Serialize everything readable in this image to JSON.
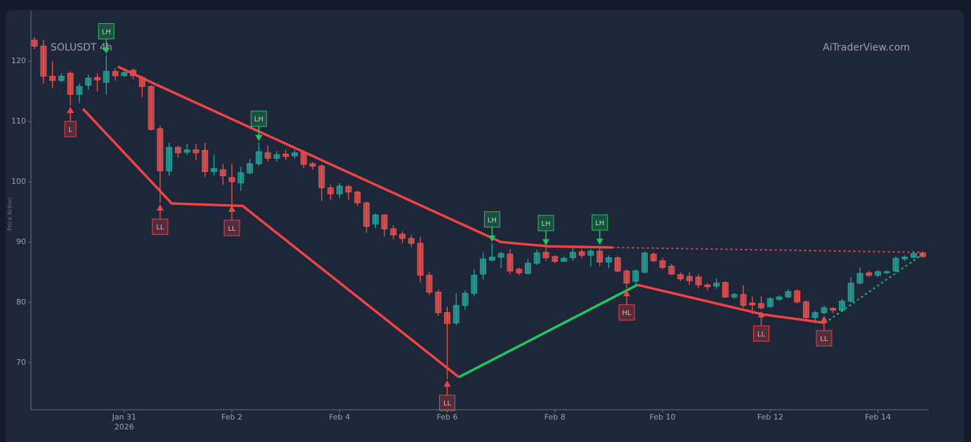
{
  "chart_data": {
    "type": "candlestick",
    "title": "SOLUSDT 4h",
    "watermark": "AiTraderView.com",
    "y_label": "Price Action",
    "up_color": "#26a69a",
    "down_color": "#ef5350",
    "xlim": [
      -0.4,
      99.6
    ],
    "ylim": [
      62.2,
      128.4
    ],
    "yticks": [
      70,
      80,
      90,
      100,
      110,
      120
    ],
    "xticks": [
      {
        "value": 10,
        "label": "Jan 31",
        "sublabel": "2026"
      },
      {
        "value": 22,
        "label": "Feb 2"
      },
      {
        "value": 34,
        "label": "Feb 4"
      },
      {
        "value": 46,
        "label": "Feb 6"
      },
      {
        "value": 58,
        "label": "Feb 8"
      },
      {
        "value": 70,
        "label": "Feb 10"
      },
      {
        "value": 82,
        "label": "Feb 12"
      },
      {
        "value": 94,
        "label": "Feb 14"
      }
    ],
    "open": [
      123.5,
      122.5,
      117.5,
      116.8,
      118,
      114.5,
      116,
      117.3,
      116.5,
      118.3,
      117.6,
      118.5,
      117.3,
      115.8,
      108.8,
      101.8,
      105.7,
      104.9,
      105.3,
      105.2,
      101.7,
      102,
      100.7,
      99.8,
      101.5,
      103,
      104.8,
      103.9,
      104.6,
      104.3,
      104.8,
      103,
      102.6,
      99,
      98,
      99.2,
      98.3,
      96.5,
      93,
      94.5,
      92.2,
      91.3,
      90.6,
      89.8,
      84.5,
      81.7,
      78.3,
      76.6,
      79.5,
      81.5,
      84.7,
      87,
      87.5,
      88,
      85.5,
      84.8,
      86.5,
      88.3,
      87.6,
      86.8,
      87.4,
      88.4,
      87.8,
      88.5,
      86.7,
      87.4,
      85.2,
      83.5,
      85,
      88,
      86.9,
      86,
      84.6,
      84.3,
      84.2,
      82.9,
      82.7,
      83.3,
      80.9,
      81.3,
      79.9,
      79.8,
      79.3,
      80.5,
      80.9,
      81.9,
      80.1,
      77.5,
      78.3,
      79,
      78.7,
      80.2,
      83.2,
      84.9,
      84.5,
      84.9,
      85.2,
      87.2,
      87.5,
      88.2
    ],
    "high": [
      124,
      123.5,
      120,
      118,
      118.3,
      116.3,
      117.8,
      118,
      121,
      118.8,
      118.6,
      118.8,
      117.6,
      116,
      109.3,
      106.5,
      106,
      106.3,
      106.3,
      106.5,
      104.5,
      103,
      103,
      102.5,
      103.8,
      106.5,
      106,
      105.1,
      105.3,
      105.3,
      105.2,
      103.3,
      102.9,
      99.5,
      99.8,
      99.5,
      98.5,
      96.7,
      94.8,
      94.6,
      92.8,
      91.8,
      91.2,
      90.9,
      85,
      82.1,
      79.3,
      81.5,
      82,
      85.5,
      88.3,
      89.8,
      88.4,
      88.8,
      85.8,
      87.2,
      88.7,
      89.2,
      87.8,
      87.6,
      89,
      88.8,
      88.8,
      89.3,
      87.8,
      87.7,
      85.5,
      85.5,
      88.5,
      88.3,
      87.4,
      86.4,
      85,
      85,
      84.7,
      83.2,
      84,
      83.5,
      81.6,
      82.9,
      81,
      81,
      80.9,
      81.2,
      82.2,
      82.2,
      80.3,
      78.6,
      79.5,
      79.2,
      80.6,
      84.2,
      85.8,
      85.2,
      85.4,
      85.3,
      87.6,
      87.8,
      88.5,
      88.5
    ],
    "low": [
      122,
      116.3,
      115.5,
      116.5,
      112.7,
      113,
      115.3,
      115,
      114.5,
      116.8,
      117.4,
      117,
      114,
      108.5,
      96.5,
      101,
      104,
      104.5,
      103.6,
      100.8,
      101,
      99.5,
      96.3,
      98.5,
      101.2,
      102.6,
      103.4,
      103.3,
      103.6,
      103.8,
      102.3,
      102,
      96.8,
      97,
      97.3,
      97,
      96,
      91.5,
      92.3,
      90.9,
      90.5,
      89.8,
      89.2,
      83.3,
      81.2,
      77.8,
      67.3,
      76.2,
      78.8,
      81,
      83.8,
      86.8,
      85.7,
      84.7,
      84.5,
      84.6,
      86.2,
      86.9,
      86.5,
      86.7,
      86.9,
      87.3,
      85.9,
      86,
      85.7,
      85,
      82.3,
      83,
      84.8,
      86.7,
      85.5,
      84.5,
      83.5,
      82.9,
      82.3,
      82,
      82.3,
      80.7,
      80.6,
      79.1,
      78,
      78.8,
      79.1,
      80.3,
      80.7,
      79.8,
      77.2,
      76.5,
      78,
      78.2,
      78.4,
      80,
      83,
      84.2,
      84.2,
      84.7,
      85,
      86.8,
      87.3,
      87.4
    ],
    "close": [
      122.5,
      117.5,
      116.8,
      117.5,
      114.5,
      115.8,
      117.2,
      116.9,
      118.3,
      117.6,
      118.1,
      117.6,
      115.8,
      108.7,
      101.8,
      105.7,
      104.8,
      105.3,
      104.8,
      101.7,
      102.2,
      101,
      100,
      101.5,
      103,
      105,
      103.9,
      104.5,
      104.2,
      104.8,
      102.9,
      102.6,
      99,
      98,
      99.3,
      98.3,
      96.5,
      92.6,
      94.5,
      92.2,
      91.2,
      90.6,
      89.8,
      84.5,
      81.7,
      78.3,
      76.5,
      79.5,
      81.5,
      84.5,
      87.2,
      87.5,
      88.1,
      85.2,
      84.9,
      86.5,
      88.2,
      87.4,
      86.8,
      87.3,
      88.3,
      87.8,
      88.5,
      86.7,
      87.4,
      85.2,
      83.2,
      85.2,
      88.2,
      86.9,
      85.8,
      84.7,
      83.9,
      83.6,
      82.9,
      82.6,
      83.2,
      80.9,
      81.3,
      79.5,
      79.6,
      79.1,
      80.6,
      80.9,
      81.8,
      80.1,
      77.5,
      78.3,
      79.1,
      78.7,
      80.2,
      83.2,
      84.8,
      84.5,
      85.1,
      85.1,
      87.3,
      87.5,
      88.1,
      87.6
    ],
    "lines": [
      {
        "color": "#ef4444",
        "dash": false,
        "x": [
          9.3,
          13.3,
          52,
          57.3,
          64.4
        ],
        "y": [
          119.1,
          116.3,
          90,
          89.3,
          89.1
        ]
      },
      {
        "color": "#ef4444",
        "dash": true,
        "x": [
          64.4,
          99
        ],
        "y": [
          89.1,
          88.3
        ]
      },
      {
        "color": "#ef4444",
        "dash": false,
        "x": [
          5.4,
          15.3,
          23.2,
          47.3
        ],
        "y": [
          112.1,
          96.4,
          96,
          67.6
        ]
      },
      {
        "color": "#22c55e",
        "dash": false,
        "x": [
          47.3,
          67.2
        ],
        "y": [
          67.6,
          82.9
        ]
      },
      {
        "color": "#ef4444",
        "dash": false,
        "x": [
          67.2,
          81.2,
          88.1
        ],
        "y": [
          82.9,
          78,
          76.6
        ]
      },
      {
        "color": "#22c55e",
        "dash": true,
        "x": [
          88.1,
          99
        ],
        "y": [
          76.6,
          88
        ]
      }
    ],
    "markers": [
      {
        "candle": 4,
        "label": "L",
        "side": "low",
        "color": "#ef4444"
      },
      {
        "candle": 8,
        "label": "LH",
        "side": "high",
        "color": "#22c55e"
      },
      {
        "candle": 14,
        "label": "LL",
        "side": "low",
        "color": "#ef4444"
      },
      {
        "candle": 22,
        "label": "LL",
        "side": "low",
        "color": "#ef4444"
      },
      {
        "candle": 25,
        "label": "LH",
        "side": "high",
        "color": "#22c55e"
      },
      {
        "candle": 46,
        "label": "LL",
        "side": "low",
        "color": "#ef4444"
      },
      {
        "candle": 51,
        "label": "LH",
        "side": "high",
        "color": "#22c55e"
      },
      {
        "candle": 57,
        "label": "LH",
        "side": "high",
        "color": "#22c55e"
      },
      {
        "candle": 63,
        "label": "LH",
        "side": "high",
        "color": "#22c55e"
      },
      {
        "candle": 66,
        "label": "HL",
        "side": "low",
        "color": "#ef4444"
      },
      {
        "candle": 81,
        "label": "LL",
        "side": "low",
        "color": "#ef4444"
      },
      {
        "candle": 88,
        "label": "LL",
        "side": "low",
        "color": "#ef4444"
      }
    ]
  }
}
